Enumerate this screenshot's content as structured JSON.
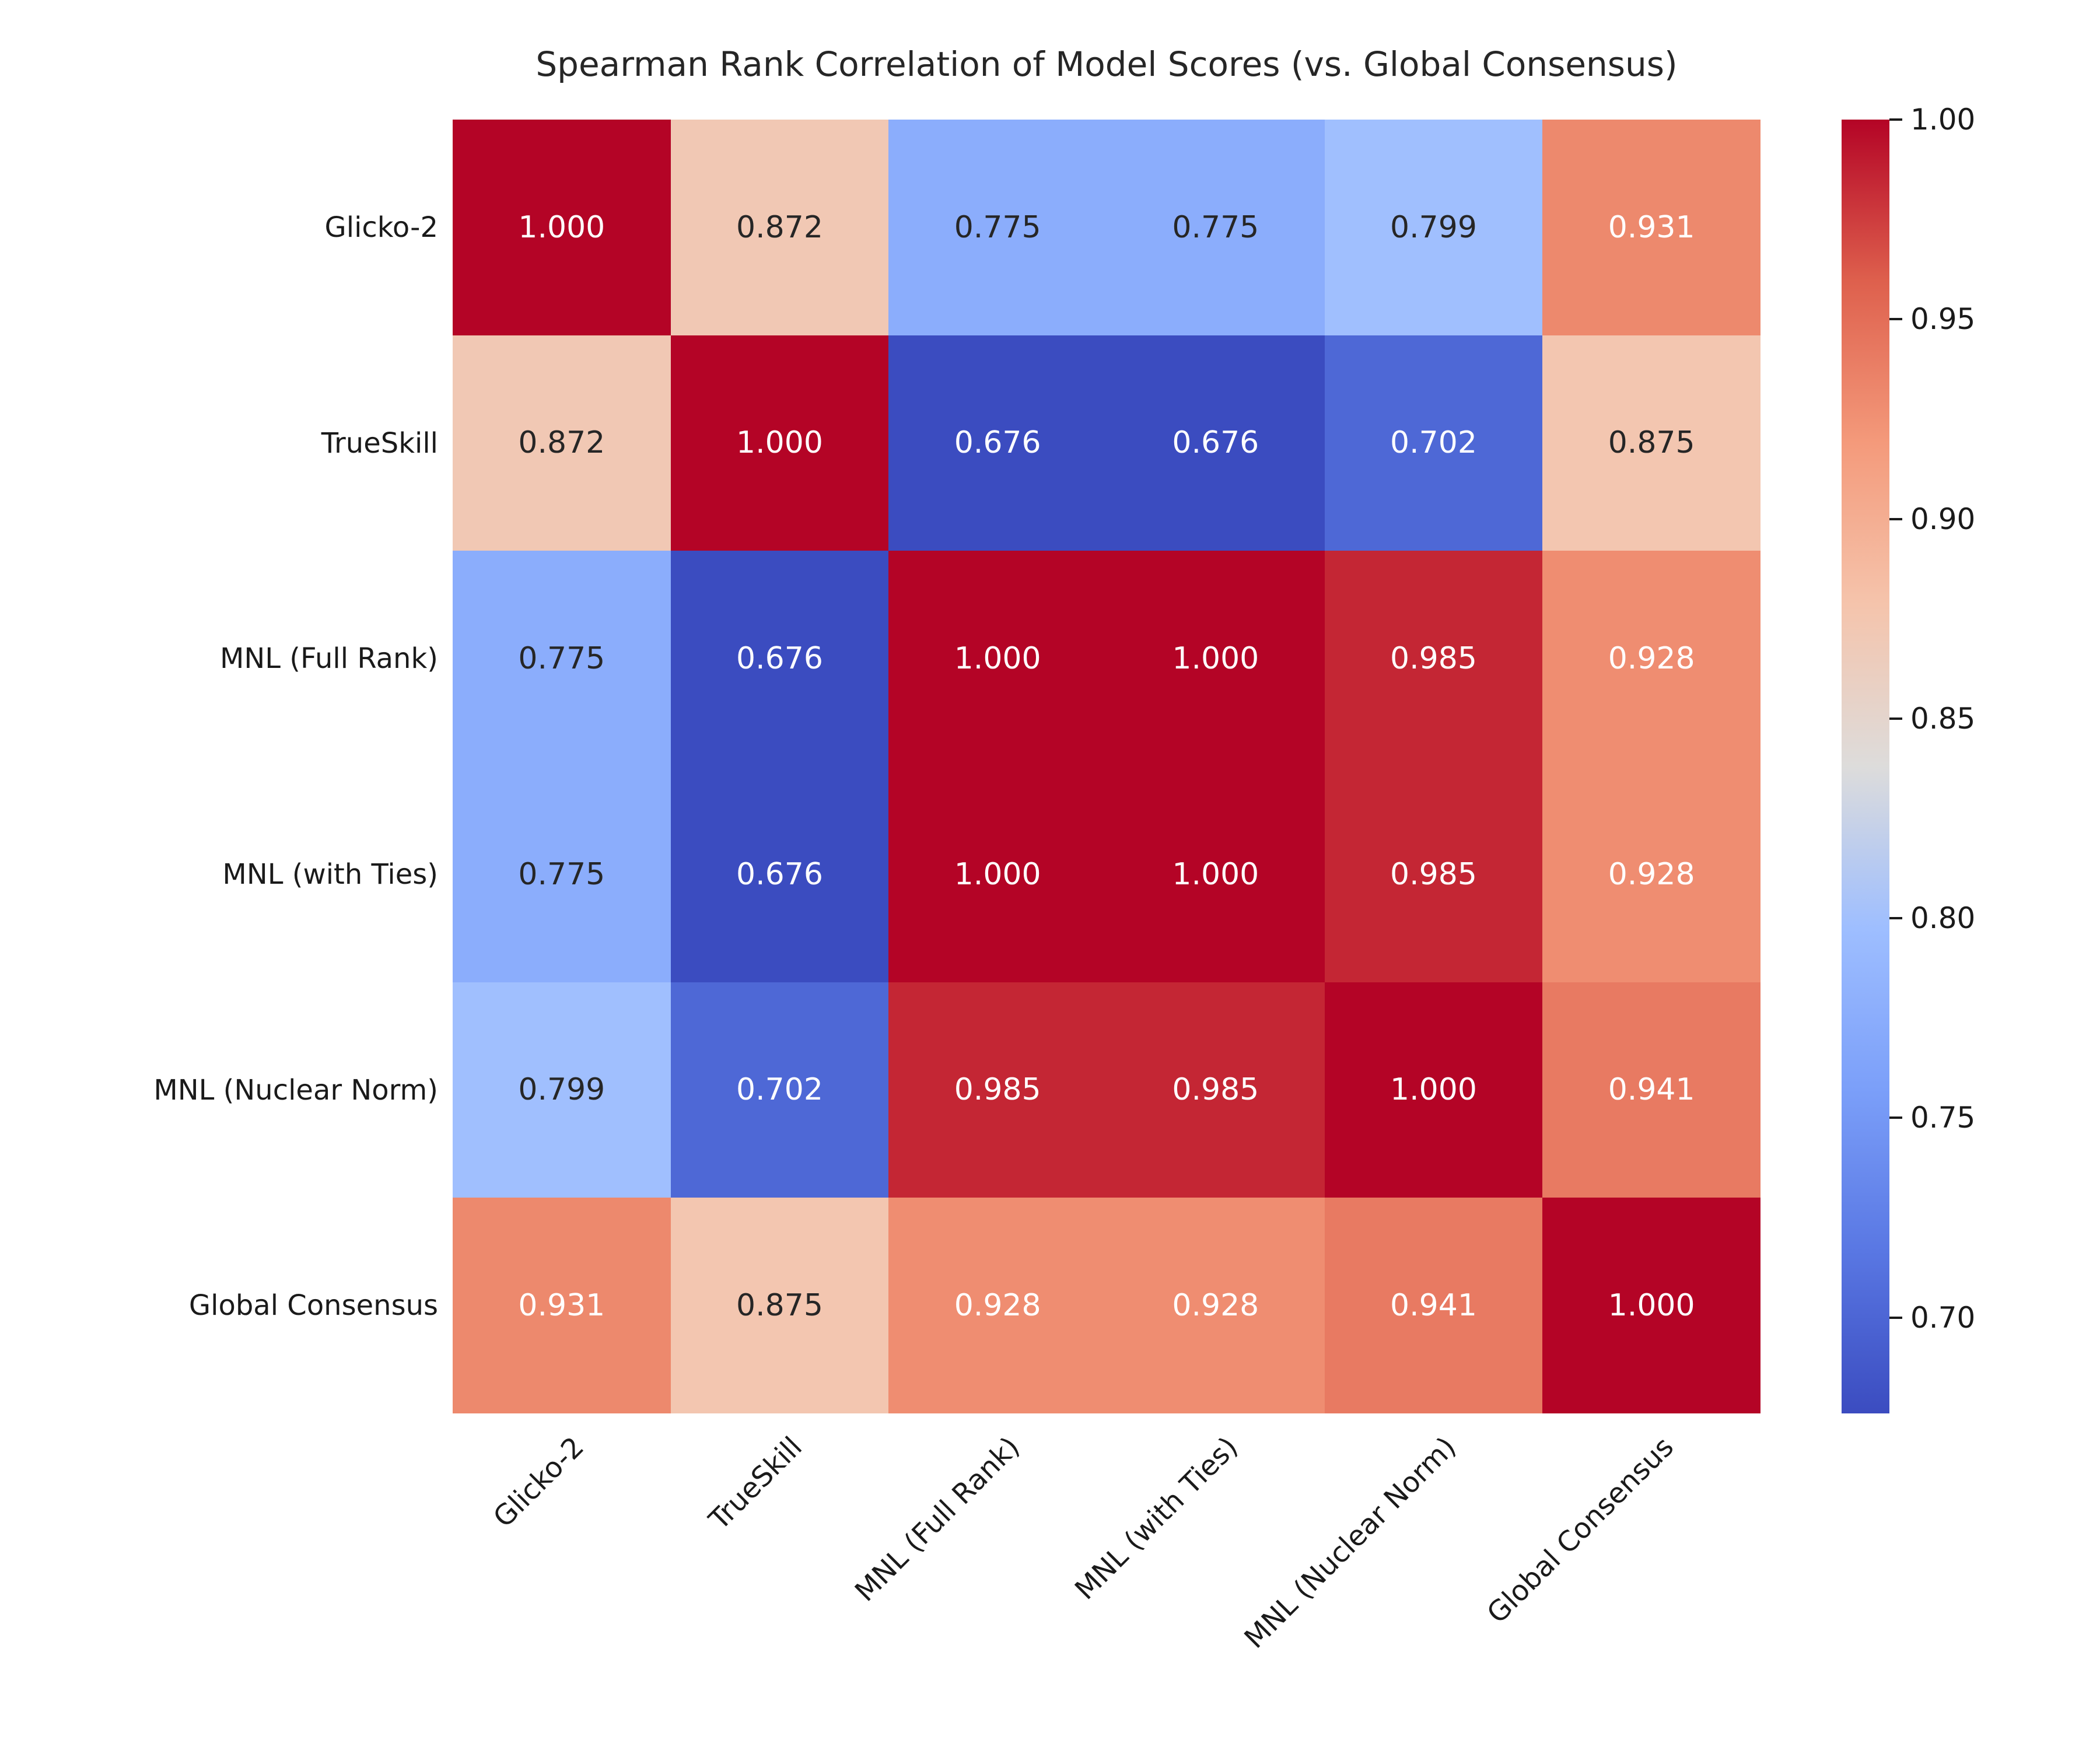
{
  "chart_data": {
    "type": "heatmap",
    "title": "Spearman Rank Correlation of Model Scores (vs. Global Consensus)",
    "categories": [
      "Glicko-2",
      "TrueSkill",
      "MNL (Full Rank)",
      "MNL (with Ties)",
      "MNL (Nuclear Norm)",
      "Global Consensus"
    ],
    "matrix": [
      [
        1.0,
        0.872,
        0.775,
        0.775,
        0.799,
        0.931
      ],
      [
        0.872,
        1.0,
        0.676,
        0.676,
        0.702,
        0.875
      ],
      [
        0.775,
        0.676,
        1.0,
        1.0,
        0.985,
        0.928
      ],
      [
        0.775,
        0.676,
        1.0,
        1.0,
        0.985,
        0.928
      ],
      [
        0.799,
        0.702,
        0.985,
        0.985,
        1.0,
        0.941
      ],
      [
        0.931,
        0.875,
        0.928,
        0.928,
        0.941,
        1.0
      ]
    ],
    "value_decimals": 3,
    "vmin": 0.676,
    "vmax": 1.0,
    "grid": false,
    "colorbar": {
      "position": "right",
      "ticks": [
        1.0,
        0.95,
        0.9,
        0.85,
        0.8,
        0.75,
        0.7
      ],
      "tick_labels": [
        "1.00",
        "0.95",
        "0.90",
        "0.85",
        "0.80",
        "0.75",
        "0.70"
      ]
    },
    "colormap": {
      "name": "coolwarm",
      "stops": [
        {
          "t": 0.0,
          "color": "#3b4cc0"
        },
        {
          "t": 0.125,
          "color": "#5977e3"
        },
        {
          "t": 0.25,
          "color": "#7b9ff9"
        },
        {
          "t": 0.375,
          "color": "#9ebeff"
        },
        {
          "t": 0.5,
          "color": "#dddcdb"
        },
        {
          "t": 0.625,
          "color": "#f5c4ac"
        },
        {
          "t": 0.75,
          "color": "#f49a7b"
        },
        {
          "t": 0.875,
          "color": "#de604d"
        },
        {
          "t": 1.0,
          "color": "#b40426"
        }
      ]
    },
    "colors": {
      "annotation_dark": "#262626",
      "annotation_light": "#ffffff",
      "background": "#ffffff",
      "tick_color": "#1a1a1a"
    }
  }
}
